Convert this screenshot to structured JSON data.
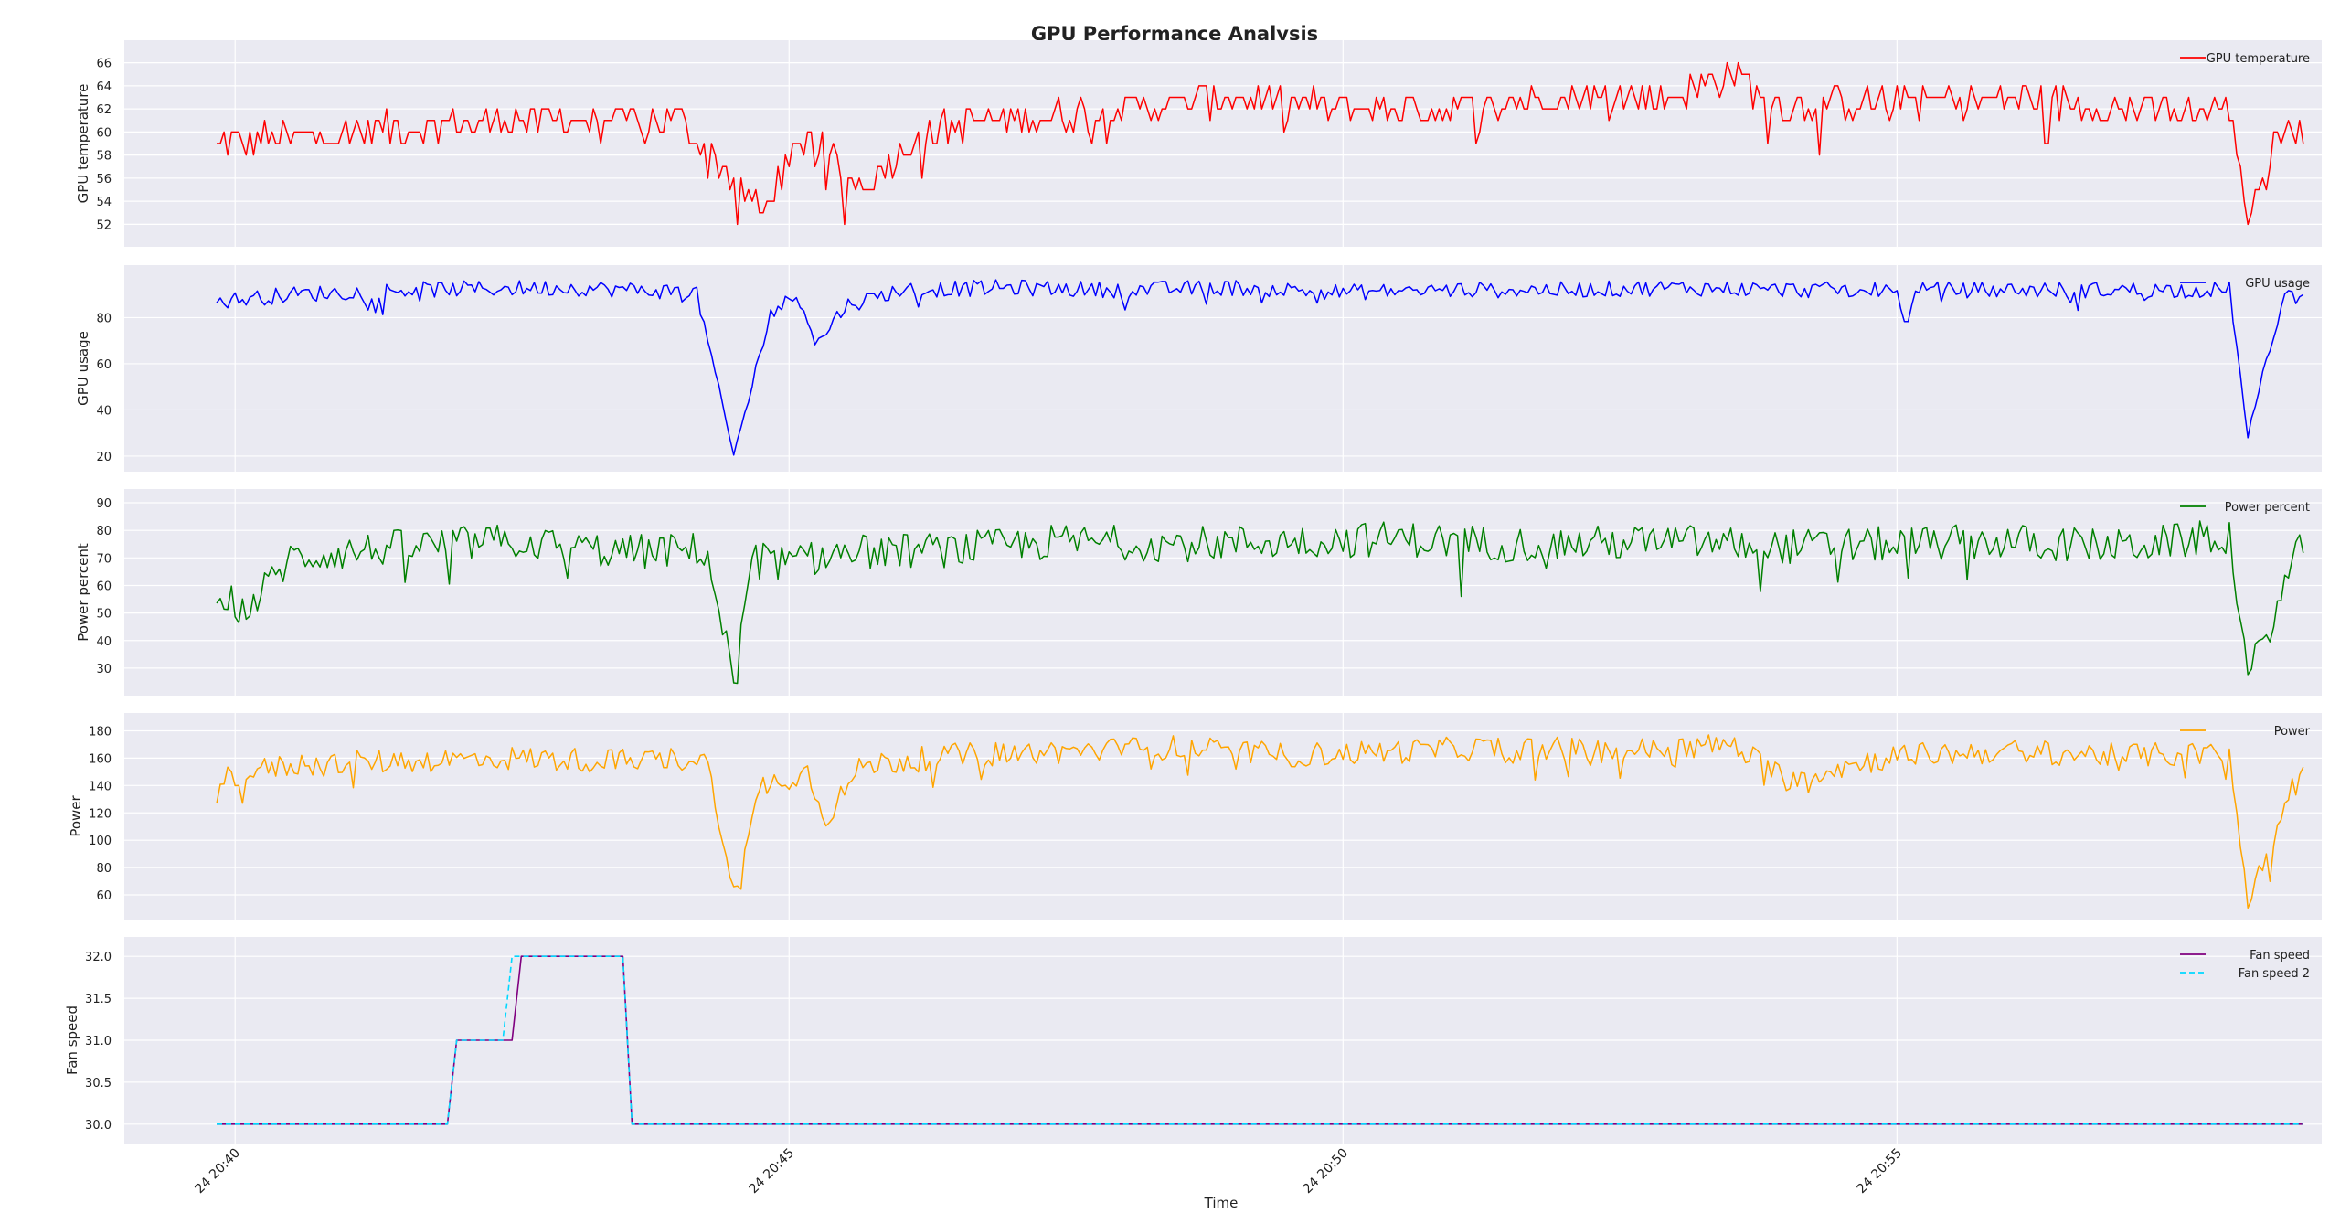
{
  "figure": {
    "title": "GPU Performance Analysis",
    "xlabel": "Time",
    "x_tick_labels": [
      "24 20:40",
      "24 20:45",
      "24 20:50",
      "24 20:55"
    ],
    "colors": {
      "panel_bg": "#EAEAF2",
      "grid": "#FFFFFF",
      "gpu_temperature": "#FF0000",
      "gpu_usage": "#0000FF",
      "power_percent": "#008000",
      "power": "#FFA500",
      "fan_speed": "#800080",
      "fan_speed_2": "#00D8FF"
    }
  },
  "chart_data": [
    {
      "type": "line",
      "ylabel": "GPU temperature",
      "legend_position": "top-right",
      "xlim": [
        "20:39:00",
        "20:58:50"
      ],
      "ylim": [
        51,
        67
      ],
      "yticks": [
        52,
        54,
        56,
        58,
        60,
        62,
        64,
        66
      ],
      "x_times": [
        "20:39:50",
        "20:41:00",
        "20:42:30",
        "20:44:00",
        "20:44:45",
        "20:45:10",
        "20:45:40",
        "20:46:10",
        "20:47:00",
        "20:48:00",
        "20:49:00",
        "20:50:00",
        "20:51:00",
        "20:52:00",
        "20:53:00",
        "20:53:30",
        "20:54:00",
        "20:55:00",
        "20:56:00",
        "20:57:00",
        "20:58:00",
        "20:58:10",
        "20:58:30",
        "20:58:40"
      ],
      "series": [
        {
          "name": "GPU temperature",
          "color": "#FF0000",
          "values": [
            59,
            60,
            61,
            61,
            53,
            60,
            55,
            60,
            61,
            62,
            63,
            62,
            62,
            63,
            63,
            65,
            62,
            63,
            63,
            62,
            62,
            53,
            61,
            60
          ]
        }
      ]
    },
    {
      "type": "line",
      "ylabel": "GPU usage",
      "legend_position": "top-right",
      "xlim": [
        "20:39:00",
        "20:58:50"
      ],
      "ylim": [
        18,
        98
      ],
      "yticks": [
        20,
        40,
        60,
        80
      ],
      "x_times": [
        "20:39:50",
        "20:40:30",
        "20:41:30",
        "20:43:00",
        "20:44:10",
        "20:44:30",
        "20:44:50",
        "20:45:05",
        "20:45:15",
        "20:45:30",
        "20:46:00",
        "20:47:00",
        "20:48:00",
        "20:49:00",
        "20:50:00",
        "20:51:00",
        "20:52:00",
        "20:53:00",
        "20:54:00",
        "20:55:00",
        "20:55:05",
        "20:55:10",
        "20:56:00",
        "20:57:00",
        "20:58:00",
        "20:58:10",
        "20:58:30",
        "20:58:40"
      ],
      "series": [
        {
          "name": "GPU usage",
          "color": "#0000FF",
          "values": [
            87,
            90,
            92,
            93,
            91,
            20,
            82,
            90,
            68,
            85,
            92,
            93,
            92,
            93,
            91,
            92,
            92,
            93,
            92,
            92,
            74,
            92,
            92,
            92,
            92,
            29,
            90,
            88
          ]
        }
      ]
    },
    {
      "type": "line",
      "ylabel": "Power percent",
      "legend_position": "top-right",
      "xlim": [
        "20:39:00",
        "20:58:50"
      ],
      "ylim": [
        24,
        91
      ],
      "yticks": [
        30,
        40,
        50,
        60,
        70,
        80,
        90
      ],
      "x_times": [
        "20:39:50",
        "20:40:05",
        "20:40:30",
        "20:41:30",
        "20:42:30",
        "20:43:30",
        "20:44:15",
        "20:44:30",
        "20:44:40",
        "20:45:00",
        "20:45:30",
        "20:46:30",
        "20:47:30",
        "20:48:30",
        "20:49:30",
        "20:50:30",
        "20:51:00",
        "20:51:30",
        "20:52:00",
        "20:53:00",
        "20:54:00",
        "20:55:00",
        "20:56:00",
        "20:57:00",
        "20:58:00",
        "20:58:10",
        "20:58:40"
      ],
      "series": [
        {
          "name": "Power percent",
          "color": "#008000",
          "values": [
            60,
            50,
            70,
            74,
            76,
            72,
            73,
            26,
            70,
            68,
            72,
            73,
            76,
            75,
            76,
            77,
            76,
            75,
            75,
            76,
            74,
            75,
            76,
            74,
            78,
            26,
            76
          ]
        }
      ]
    },
    {
      "type": "line",
      "ylabel": "Power",
      "legend_position": "top-right",
      "xlim": [
        "20:39:00",
        "20:58:50"
      ],
      "ylim": [
        50,
        185
      ],
      "yticks": [
        60,
        80,
        100,
        120,
        140,
        160,
        180
      ],
      "x_times": [
        "20:39:50",
        "20:40:30",
        "20:41:30",
        "20:42:30",
        "20:43:30",
        "20:44:15",
        "20:44:30",
        "20:44:45",
        "20:45:10",
        "20:45:20",
        "20:45:40",
        "20:46:30",
        "20:47:30",
        "20:48:30",
        "20:49:30",
        "20:50:30",
        "20:51:30",
        "20:52:30",
        "20:53:30",
        "20:54:00",
        "20:55:00",
        "20:56:00",
        "20:57:00",
        "20:58:00",
        "20:58:10",
        "20:58:40"
      ],
      "series": [
        {
          "name": "Power",
          "color": "#FFA500",
          "values": [
            145,
            155,
            158,
            160,
            158,
            160,
            59,
            140,
            150,
            117,
            155,
            162,
            165,
            168,
            162,
            165,
            168,
            165,
            170,
            145,
            162,
            165,
            162,
            163,
            53,
            158
          ]
        }
      ]
    },
    {
      "type": "line",
      "ylabel": "Fan speed",
      "legend_position": "top-right",
      "xlim": [
        "20:39:00",
        "20:58:50"
      ],
      "ylim": [
        29.9,
        32.1
      ],
      "yticks": [
        30.0,
        30.5,
        31.0,
        31.5,
        32.0
      ],
      "series": [
        {
          "name": "Fan speed",
          "color": "#800080",
          "style": "solid",
          "x_times": [
            "20:39:50",
            "20:41:55",
            "20:42:00",
            "20:42:30",
            "20:42:35",
            "20:43:30",
            "20:43:35",
            "20:58:40"
          ],
          "values": [
            30,
            30,
            31,
            31,
            32,
            32,
            30,
            30
          ]
        },
        {
          "name": "Fan speed 2",
          "color": "#00D8FF",
          "style": "dashed",
          "x_times": [
            "20:39:50",
            "20:41:55",
            "20:42:00",
            "20:42:25",
            "20:42:30",
            "20:43:30",
            "20:43:35",
            "20:58:40"
          ],
          "values": [
            30,
            30,
            31,
            31,
            32,
            32,
            30,
            30
          ]
        }
      ]
    }
  ]
}
